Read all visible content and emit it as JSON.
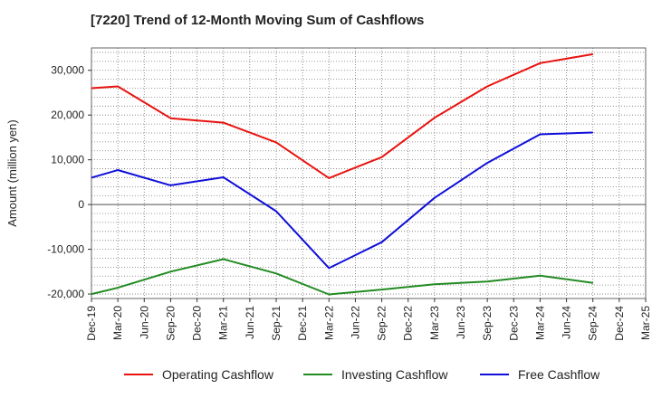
{
  "chart_data": {
    "type": "line",
    "title": "[7220]  Trend of 12-Month Moving Sum of Cashflows",
    "xlabel": "",
    "ylabel": "Amount (million yen)",
    "categories": [
      "Dec-19",
      "Mar-20",
      "Jun-20",
      "Sep-20",
      "Dec-20",
      "Mar-21",
      "Jun-21",
      "Sep-21",
      "Dec-21",
      "Mar-22",
      "Jun-22",
      "Sep-22",
      "Dec-22",
      "Mar-23",
      "Jun-23",
      "Sep-23",
      "Dec-23",
      "Mar-24",
      "Jun-24",
      "Sep-24",
      "Dec-24",
      "Mar-25"
    ],
    "ylim": [
      -21000,
      35000
    ],
    "yticks": [
      -20000,
      -10000,
      0,
      10000,
      20000,
      30000
    ],
    "ytick_labels": [
      "-20,000",
      "-10,000",
      "0",
      "10,000",
      "20,000",
      "30,000"
    ],
    "grid": true,
    "legend_position": "bottom",
    "series": [
      {
        "name": "Operating Cashflow",
        "color": "#e8130f",
        "points": [
          {
            "x": "Dec-19",
            "y": 26000
          },
          {
            "x": "Mar-20",
            "y": 26400
          },
          {
            "x": "Sep-20",
            "y": 19300
          },
          {
            "x": "Mar-21",
            "y": 18300
          },
          {
            "x": "Sep-21",
            "y": 13900
          },
          {
            "x": "Mar-22",
            "y": 5900
          },
          {
            "x": "Sep-22",
            "y": 10600
          },
          {
            "x": "Mar-23",
            "y": 19400
          },
          {
            "x": "Sep-23",
            "y": 26400
          },
          {
            "x": "Mar-24",
            "y": 31600
          },
          {
            "x": "Sep-24",
            "y": 33600
          }
        ]
      },
      {
        "name": "Investing Cashflow",
        "color": "#228b22",
        "points": [
          {
            "x": "Dec-19",
            "y": -20000
          },
          {
            "x": "Mar-20",
            "y": -18600
          },
          {
            "x": "Sep-20",
            "y": -15000
          },
          {
            "x": "Mar-21",
            "y": -12200
          },
          {
            "x": "Sep-21",
            "y": -15400
          },
          {
            "x": "Mar-22",
            "y": -20100
          },
          {
            "x": "Sep-22",
            "y": -19000
          },
          {
            "x": "Mar-23",
            "y": -17800
          },
          {
            "x": "Sep-23",
            "y": -17200
          },
          {
            "x": "Mar-24",
            "y": -15900
          },
          {
            "x": "Sep-24",
            "y": -17500
          }
        ]
      },
      {
        "name": "Free Cashflow",
        "color": "#0f0fd9",
        "points": [
          {
            "x": "Dec-19",
            "y": 6000
          },
          {
            "x": "Mar-20",
            "y": 7700
          },
          {
            "x": "Sep-20",
            "y": 4300
          },
          {
            "x": "Mar-21",
            "y": 6100
          },
          {
            "x": "Sep-21",
            "y": -1500
          },
          {
            "x": "Mar-22",
            "y": -14200
          },
          {
            "x": "Sep-22",
            "y": -8400
          },
          {
            "x": "Mar-23",
            "y": 1500
          },
          {
            "x": "Sep-23",
            "y": 9300
          },
          {
            "x": "Mar-24",
            "y": 15700
          },
          {
            "x": "Sep-24",
            "y": 16100
          }
        ]
      }
    ]
  }
}
